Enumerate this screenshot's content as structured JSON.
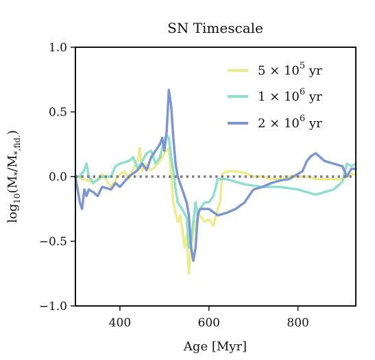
{
  "chart_data": {
    "type": "line",
    "title": "SN Timescale",
    "xlabel": "Age [Myr]",
    "ylabel": "log10(M*/M*,fid.)",
    "ylabel_parts": {
      "main": "log",
      "sub": "10",
      "open": "(M",
      "star1": "*",
      "slash": "/M",
      "star2": "*,fid.",
      "close": ")"
    },
    "xlim": [
      300,
      930
    ],
    "ylim": [
      -1.0,
      1.0
    ],
    "x_ticks": [
      400,
      600,
      800
    ],
    "x_tick_labels": [
      "400",
      "600",
      "800"
    ],
    "y_ticks": [
      -1.0,
      -0.5,
      0.0,
      0.5,
      1.0
    ],
    "y_tick_labels": [
      "−1.0",
      "−0.5",
      "0.0",
      "0.5",
      "1.0"
    ],
    "reference_line": {
      "y": 0.0,
      "style": "dotted",
      "color": "#7f7f7f"
    },
    "legend": {
      "placement": "top-right"
    },
    "grid": false,
    "series": [
      {
        "name": "5 × 10^5 yr",
        "legend_parts": {
          "base": "5 × 10",
          "exp": "5",
          "unit": " yr"
        },
        "color": "#ecec8c",
        "x": [
          300,
          320,
          340,
          360,
          380,
          400,
          410,
          420,
          430,
          440,
          445,
          450,
          455,
          460,
          470,
          480,
          490,
          500,
          510,
          515,
          520,
          525,
          530,
          535,
          540,
          545,
          550,
          555,
          560,
          565,
          570,
          580,
          590,
          600,
          610,
          620,
          625,
          630,
          640,
          660,
          680,
          700,
          720,
          740,
          760,
          780,
          800,
          820,
          840,
          860,
          880,
          900,
          910,
          920,
          930
        ],
        "y": [
          0.0,
          -0.02,
          -0.05,
          0.02,
          -0.08,
          0.02,
          0.04,
          -0.02,
          0.06,
          0.12,
          0.22,
          0.04,
          0.1,
          0.08,
          0.05,
          0.08,
          0.12,
          0.18,
          0.22,
          0.02,
          -0.2,
          -0.28,
          -0.35,
          -0.3,
          -0.4,
          -0.55,
          -0.45,
          -0.75,
          -0.55,
          -0.45,
          -0.35,
          -0.3,
          -0.35,
          -0.33,
          -0.38,
          -0.25,
          -0.2,
          0.02,
          0.04,
          0.04,
          0.03,
          0.0,
          0.0,
          -0.02,
          -0.02,
          0.0,
          0.0,
          0.0,
          -0.02,
          -0.02,
          -0.02,
          -0.02,
          0.0,
          0.02,
          0.02
        ]
      },
      {
        "name": "1 × 10^6 yr",
        "legend_parts": {
          "base": "1 × 10",
          "exp": "6",
          "unit": " yr"
        },
        "color": "#8ee0cc",
        "x": [
          300,
          310,
          320,
          325,
          330,
          340,
          360,
          380,
          390,
          400,
          420,
          430,
          440,
          450,
          460,
          470,
          480,
          490,
          500,
          505,
          510,
          515,
          520,
          525,
          530,
          540,
          550,
          555,
          560,
          565,
          570,
          575,
          580,
          590,
          600,
          610,
          620,
          630,
          640,
          660,
          680,
          700,
          720,
          740,
          760,
          780,
          800,
          820,
          840,
          860,
          880,
          900,
          910,
          920,
          930
        ],
        "y": [
          0.0,
          0.0,
          0.05,
          0.1,
          0.0,
          -0.05,
          0.0,
          0.0,
          0.08,
          0.1,
          0.12,
          0.15,
          0.06,
          0.12,
          0.18,
          0.2,
          0.1,
          0.15,
          0.28,
          0.32,
          0.3,
          0.15,
          0.05,
          -0.1,
          -0.2,
          -0.25,
          -0.32,
          -0.55,
          -0.5,
          -0.35,
          -0.2,
          -0.3,
          -0.25,
          -0.2,
          -0.2,
          -0.15,
          -0.02,
          -0.02,
          -0.02,
          -0.04,
          -0.06,
          -0.07,
          -0.08,
          -0.08,
          -0.08,
          -0.09,
          -0.1,
          -0.12,
          -0.14,
          -0.12,
          -0.1,
          -0.04,
          0.1,
          0.08,
          0.1
        ]
      },
      {
        "name": "2 × 10^6 yr",
        "legend_parts": {
          "base": "2 × 10",
          "exp": "6",
          "unit": " yr"
        },
        "color": "#7d96d2",
        "x": [
          300,
          310,
          315,
          320,
          325,
          330,
          340,
          350,
          360,
          380,
          390,
          400,
          420,
          440,
          450,
          460,
          470,
          480,
          490,
          495,
          500,
          505,
          510,
          515,
          520,
          525,
          530,
          540,
          545,
          550,
          555,
          560,
          565,
          570,
          575,
          580,
          590,
          600,
          620,
          640,
          660,
          680,
          700,
          720,
          740,
          760,
          780,
          800,
          810,
          820,
          830,
          840,
          860,
          880,
          900,
          910,
          920,
          930
        ],
        "y": [
          0.0,
          -0.2,
          -0.25,
          -0.1,
          -0.15,
          -0.1,
          -0.12,
          -0.15,
          -0.08,
          -0.1,
          -0.05,
          -0.08,
          0.0,
          0.05,
          0.1,
          0.05,
          0.15,
          0.2,
          0.25,
          0.3,
          0.2,
          0.35,
          0.67,
          0.55,
          0.3,
          0.1,
          0.0,
          -0.1,
          -0.15,
          -0.2,
          -0.3,
          -0.55,
          -0.65,
          -0.55,
          -0.3,
          -0.25,
          -0.25,
          -0.25,
          -0.3,
          -0.28,
          -0.25,
          -0.2,
          -0.1,
          -0.08,
          -0.05,
          -0.03,
          -0.02,
          0.02,
          0.04,
          0.12,
          0.16,
          0.18,
          0.12,
          0.1,
          0.08,
          0.0,
          0.06,
          0.06
        ]
      }
    ]
  }
}
